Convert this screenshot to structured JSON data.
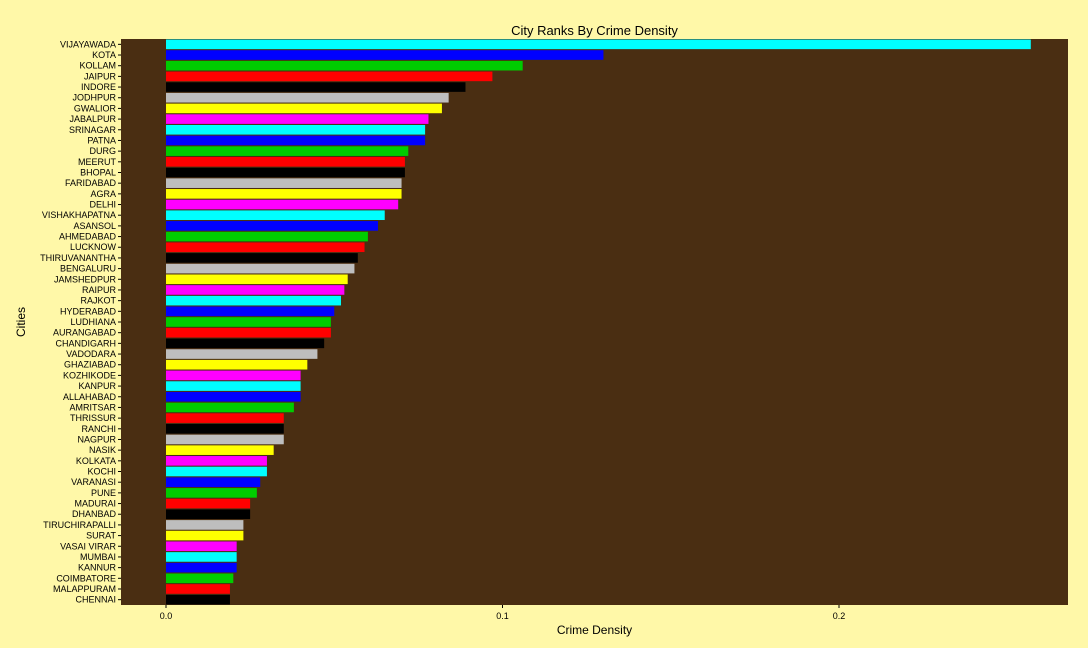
{
  "chart_data": {
    "type": "bar",
    "orientation": "horizontal",
    "title": "City Ranks By Crime Density",
    "xlabel": "Crime Density",
    "ylabel": "Cities",
    "xlim": [
      0,
      0.27
    ],
    "x_ticks": [
      {
        "value": 0.0,
        "label": "0.0"
      },
      {
        "value": 0.1,
        "label": "0.1"
      },
      {
        "value": 0.2,
        "label": "0.2"
      }
    ],
    "grid": false,
    "panel_color": "#4a2e12",
    "background_color": "#fff8a8",
    "bar_color_cycle": [
      "#00ffff",
      "#0000ff",
      "#00cc00",
      "#ff0000",
      "#000000",
      "#bebebe",
      "#ffff00",
      "#ff00ff"
    ],
    "categories": [
      "VIJAYAWADA",
      "KOTA",
      "KOLLAM",
      "JAIPUR",
      "INDORE",
      "JODHPUR",
      "GWALIOR",
      "JABALPUR",
      "SRINAGAR",
      "PATNA",
      "DURG",
      "MEERUT",
      "BHOPAL",
      "FARIDABAD",
      "AGRA",
      "DELHI",
      "VISHAKHAPATNA",
      "ASANSOL",
      "AHMEDABAD",
      "LUCKNOW",
      "THIRUVANANTHA",
      "BENGALURU",
      "JAMSHEDPUR",
      "RAIPUR",
      "RAJKOT",
      "HYDERABAD",
      "LUDHIANA",
      "AURANGABAD",
      "CHANDIGARH",
      "VADODARA",
      "GHAZIABAD",
      "KOZHIKODE",
      "KANPUR",
      "ALLAHABAD",
      "AMRITSAR",
      "THRISSUR",
      "RANCHI",
      "NAGPUR",
      "NASIK",
      "KOLKATA",
      "KOCHI",
      "VARANASI",
      "PUNE",
      "MADURAI",
      "DHANBAD",
      "TIRUCHIRAPALLI",
      "SURAT",
      "VASAI VIRAR",
      "MUMBAI",
      "KANNUR",
      "COIMBATORE",
      "MALAPPURAM",
      "CHENNAI"
    ],
    "values": [
      0.257,
      0.13,
      0.106,
      0.097,
      0.089,
      0.084,
      0.082,
      0.078,
      0.077,
      0.077,
      0.072,
      0.071,
      0.071,
      0.07,
      0.07,
      0.069,
      0.065,
      0.063,
      0.06,
      0.059,
      0.057,
      0.056,
      0.054,
      0.053,
      0.052,
      0.05,
      0.049,
      0.049,
      0.047,
      0.045,
      0.042,
      0.04,
      0.04,
      0.04,
      0.038,
      0.035,
      0.035,
      0.035,
      0.032,
      0.03,
      0.03,
      0.028,
      0.027,
      0.025,
      0.025,
      0.023,
      0.023,
      0.021,
      0.021,
      0.021,
      0.02,
      0.019,
      0.019
    ]
  }
}
